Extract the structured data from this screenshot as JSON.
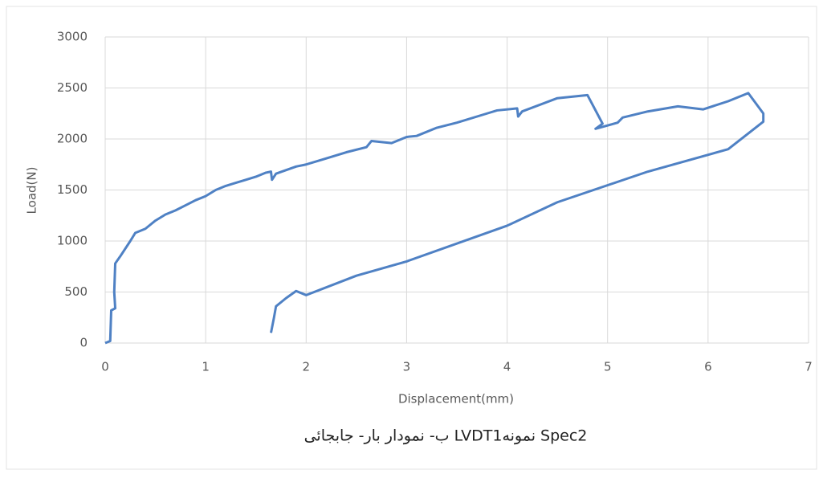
{
  "chart_data": {
    "type": "line",
    "caption": "ب- نمودار بار- جابجائی LVDT1نمونه Spec2",
    "x_label": "Displacement(mm)",
    "y_label": "Load(N)",
    "x": [
      0.0,
      0.05,
      0.06,
      0.1,
      0.09,
      0.1,
      0.15,
      0.25,
      0.3,
      0.4,
      0.5,
      0.6,
      0.7,
      0.8,
      0.9,
      1.0,
      1.1,
      1.2,
      1.3,
      1.4,
      1.5,
      1.6,
      1.65,
      1.66,
      1.7,
      1.9,
      2.0,
      2.2,
      2.4,
      2.6,
      2.65,
      2.85,
      3.0,
      3.1,
      3.3,
      3.5,
      3.8,
      3.9,
      4.1,
      4.11,
      4.15,
      4.5,
      4.8,
      4.95,
      4.88,
      5.1,
      5.15,
      5.4,
      5.7,
      5.95,
      6.2,
      6.4,
      6.55,
      6.55,
      6.2,
      5.4,
      4.5,
      4.0,
      3.0,
      2.5,
      2.0,
      1.9,
      1.8,
      1.7,
      1.68,
      1.65
    ],
    "series": [
      {
        "color": "#4f81c4",
        "values": [
          0,
          20,
          320,
          340,
          500,
          780,
          850,
          1000,
          1080,
          1120,
          1200,
          1260,
          1300,
          1350,
          1400,
          1440,
          1500,
          1540,
          1570,
          1600,
          1630,
          1670,
          1680,
          1600,
          1660,
          1730,
          1750,
          1810,
          1870,
          1920,
          1980,
          1960,
          2020,
          2030,
          2110,
          2160,
          2250,
          2280,
          2300,
          2220,
          2270,
          2400,
          2430,
          2150,
          2100,
          2160,
          2210,
          2270,
          2320,
          2290,
          2370,
          2450,
          2250,
          2170,
          1900,
          1680,
          1380,
          1150,
          800,
          660,
          470,
          510,
          440,
          360,
          250,
          100
        ]
      }
    ],
    "xlim": [
      0,
      7
    ],
    "xticks": [
      0,
      1,
      2,
      3,
      4,
      5,
      6,
      7
    ],
    "ylim": [
      0,
      3000
    ],
    "yticks": [
      0,
      500,
      1000,
      1500,
      2000,
      2500,
      3000
    ],
    "grid": true
  }
}
